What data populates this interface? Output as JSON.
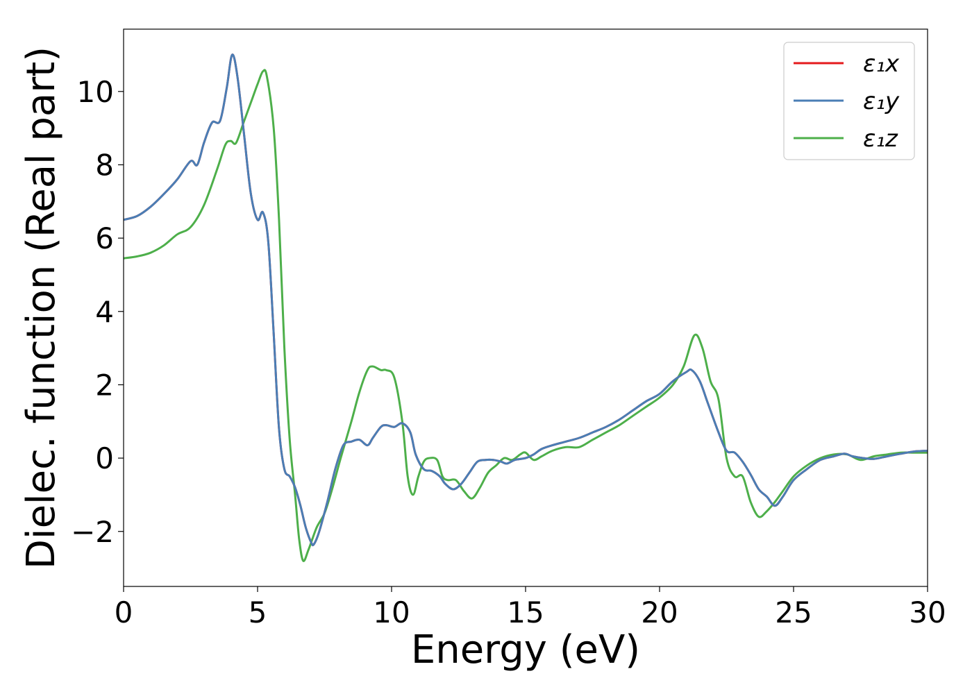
{
  "chart_data": {
    "type": "line",
    "xlabel": "Energy (eV)",
    "ylabel": "Dielec. function (Real part)",
    "xlim": [
      0,
      30
    ],
    "ylim": [
      -3.5,
      11.7
    ],
    "x_ticks": [
      0,
      5,
      10,
      15,
      20,
      25,
      30
    ],
    "x_tick_labels": [
      "0",
      "5",
      "10",
      "15",
      "20",
      "25",
      "30"
    ],
    "y_ticks": [
      -2,
      0,
      2,
      4,
      6,
      8,
      10
    ],
    "y_tick_labels": [
      "−2",
      "0",
      "2",
      "4",
      "6",
      "8",
      "10"
    ],
    "grid": false,
    "legend_position": "top-right",
    "series": [
      {
        "name": "ε₁x",
        "color": "#e41a1c",
        "x": [
          0,
          0.5,
          1.0,
          1.5,
          2.0,
          2.5,
          2.75,
          3.0,
          3.3,
          3.6,
          3.85,
          4.05,
          4.25,
          4.5,
          4.75,
          5.0,
          5.2,
          5.4,
          5.6,
          5.8,
          6.0,
          6.2,
          6.4,
          6.6,
          6.8,
          7.0,
          7.1,
          7.3,
          7.6,
          7.9,
          8.2,
          8.5,
          8.8,
          9.1,
          9.3,
          9.6,
          9.8,
          10.1,
          10.4,
          10.7,
          10.9,
          11.2,
          11.5,
          11.8,
          12.0,
          12.3,
          12.6,
          12.9,
          13.2,
          13.5,
          13.8,
          14.1,
          14.3,
          14.6,
          15.0,
          15.3,
          15.6,
          16.0,
          16.5,
          17.0,
          17.5,
          18.0,
          18.5,
          19.0,
          19.5,
          20.0,
          20.5,
          21.0,
          21.2,
          21.5,
          21.8,
          22.2,
          22.5,
          22.8,
          23.1,
          23.4,
          23.7,
          24.0,
          24.3,
          24.6,
          25.0,
          25.5,
          26.0,
          26.5,
          26.9,
          27.2,
          27.6,
          28.0,
          28.5,
          29.0,
          29.5,
          30.0
        ],
        "values": [
          6.5,
          6.6,
          6.85,
          7.2,
          7.6,
          8.1,
          8.0,
          8.6,
          9.15,
          9.2,
          10.1,
          11.0,
          10.4,
          8.8,
          7.2,
          6.5,
          6.7,
          5.9,
          3.4,
          0.8,
          -0.3,
          -0.5,
          -0.8,
          -1.3,
          -1.9,
          -2.3,
          -2.35,
          -2.0,
          -1.2,
          -0.3,
          0.35,
          0.45,
          0.5,
          0.35,
          0.55,
          0.85,
          0.9,
          0.85,
          0.95,
          0.7,
          0.1,
          -0.3,
          -0.35,
          -0.5,
          -0.7,
          -0.85,
          -0.7,
          -0.4,
          -0.1,
          -0.05,
          -0.05,
          -0.1,
          -0.15,
          -0.05,
          0.0,
          0.1,
          0.25,
          0.35,
          0.45,
          0.55,
          0.7,
          0.85,
          1.05,
          1.3,
          1.55,
          1.75,
          2.1,
          2.35,
          2.4,
          2.1,
          1.5,
          0.7,
          0.2,
          0.15,
          -0.1,
          -0.45,
          -0.85,
          -1.05,
          -1.3,
          -1.05,
          -0.6,
          -0.3,
          -0.05,
          0.05,
          0.12,
          0.05,
          0.0,
          -0.02,
          0.05,
          0.12,
          0.18,
          0.2
        ]
      },
      {
        "name": "ε₁y",
        "color": "#4a7eb5",
        "x": [
          0,
          0.5,
          1.0,
          1.5,
          2.0,
          2.5,
          2.75,
          3.0,
          3.3,
          3.6,
          3.85,
          4.05,
          4.25,
          4.5,
          4.75,
          5.0,
          5.2,
          5.4,
          5.6,
          5.8,
          6.0,
          6.2,
          6.4,
          6.6,
          6.8,
          7.0,
          7.1,
          7.3,
          7.6,
          7.9,
          8.2,
          8.5,
          8.8,
          9.1,
          9.3,
          9.6,
          9.8,
          10.1,
          10.4,
          10.7,
          10.9,
          11.2,
          11.5,
          11.8,
          12.0,
          12.3,
          12.6,
          12.9,
          13.2,
          13.5,
          13.8,
          14.1,
          14.3,
          14.6,
          15.0,
          15.3,
          15.6,
          16.0,
          16.5,
          17.0,
          17.5,
          18.0,
          18.5,
          19.0,
          19.5,
          20.0,
          20.5,
          21.0,
          21.2,
          21.5,
          21.8,
          22.2,
          22.5,
          22.8,
          23.1,
          23.4,
          23.7,
          24.0,
          24.3,
          24.6,
          25.0,
          25.5,
          26.0,
          26.5,
          26.9,
          27.2,
          27.6,
          28.0,
          28.5,
          29.0,
          29.5,
          30.0
        ],
        "values": [
          6.5,
          6.6,
          6.85,
          7.2,
          7.6,
          8.1,
          8.0,
          8.6,
          9.15,
          9.2,
          10.1,
          11.0,
          10.4,
          8.8,
          7.2,
          6.5,
          6.7,
          5.9,
          3.4,
          0.8,
          -0.3,
          -0.5,
          -0.8,
          -1.3,
          -1.9,
          -2.3,
          -2.35,
          -2.0,
          -1.2,
          -0.3,
          0.35,
          0.45,
          0.5,
          0.35,
          0.55,
          0.85,
          0.9,
          0.85,
          0.95,
          0.7,
          0.1,
          -0.3,
          -0.35,
          -0.5,
          -0.7,
          -0.85,
          -0.7,
          -0.4,
          -0.1,
          -0.05,
          -0.05,
          -0.1,
          -0.15,
          -0.05,
          0.0,
          0.1,
          0.25,
          0.35,
          0.45,
          0.55,
          0.7,
          0.85,
          1.05,
          1.3,
          1.55,
          1.75,
          2.1,
          2.35,
          2.4,
          2.1,
          1.5,
          0.7,
          0.2,
          0.15,
          -0.1,
          -0.45,
          -0.85,
          -1.05,
          -1.3,
          -1.05,
          -0.6,
          -0.3,
          -0.05,
          0.05,
          0.12,
          0.05,
          0.0,
          -0.02,
          0.05,
          0.12,
          0.18,
          0.2
        ]
      },
      {
        "name": "ε₁z",
        "color": "#4daf4a",
        "x": [
          0,
          0.5,
          1.0,
          1.5,
          2.0,
          2.5,
          3.0,
          3.5,
          3.8,
          4.0,
          4.2,
          4.5,
          4.8,
          5.0,
          5.2,
          5.35,
          5.6,
          5.8,
          6.0,
          6.2,
          6.4,
          6.55,
          6.7,
          6.9,
          7.2,
          7.5,
          7.8,
          8.1,
          8.5,
          8.8,
          9.1,
          9.3,
          9.6,
          9.8,
          10.1,
          10.4,
          10.6,
          10.8,
          11.0,
          11.2,
          11.4,
          11.7,
          11.9,
          12.1,
          12.4,
          12.7,
          13.0,
          13.3,
          13.6,
          13.9,
          14.2,
          14.5,
          14.8,
          15.0,
          15.3,
          15.6,
          16.0,
          16.5,
          17.0,
          17.5,
          18.0,
          18.5,
          19.0,
          19.5,
          20.0,
          20.5,
          20.9,
          21.3,
          21.6,
          21.9,
          22.2,
          22.5,
          22.8,
          23.1,
          23.4,
          23.7,
          24.0,
          24.3,
          24.6,
          25.0,
          25.5,
          26.0,
          26.5,
          27.0,
          27.5,
          28.0,
          28.5,
          29.0,
          29.5,
          30.0
        ],
        "values": [
          5.45,
          5.5,
          5.6,
          5.8,
          6.1,
          6.3,
          6.9,
          7.9,
          8.55,
          8.65,
          8.6,
          9.2,
          9.8,
          10.2,
          10.55,
          10.4,
          9.0,
          6.5,
          3.0,
          0.5,
          -1.0,
          -2.2,
          -2.8,
          -2.5,
          -1.9,
          -1.5,
          -0.8,
          0.0,
          1.0,
          1.8,
          2.4,
          2.5,
          2.4,
          2.4,
          2.2,
          1.0,
          -0.5,
          -1.0,
          -0.5,
          -0.1,
          0.0,
          -0.05,
          -0.5,
          -0.6,
          -0.6,
          -0.9,
          -1.1,
          -0.8,
          -0.4,
          -0.2,
          0.0,
          -0.05,
          0.1,
          0.15,
          -0.05,
          0.05,
          0.2,
          0.3,
          0.3,
          0.5,
          0.7,
          0.9,
          1.15,
          1.4,
          1.65,
          2.0,
          2.5,
          3.35,
          3.0,
          2.1,
          1.6,
          0.0,
          -0.5,
          -0.5,
          -1.2,
          -1.6,
          -1.45,
          -1.2,
          -0.9,
          -0.5,
          -0.2,
          0.0,
          0.1,
          0.1,
          -0.05,
          0.05,
          0.1,
          0.15,
          0.15,
          0.15
        ]
      }
    ]
  }
}
